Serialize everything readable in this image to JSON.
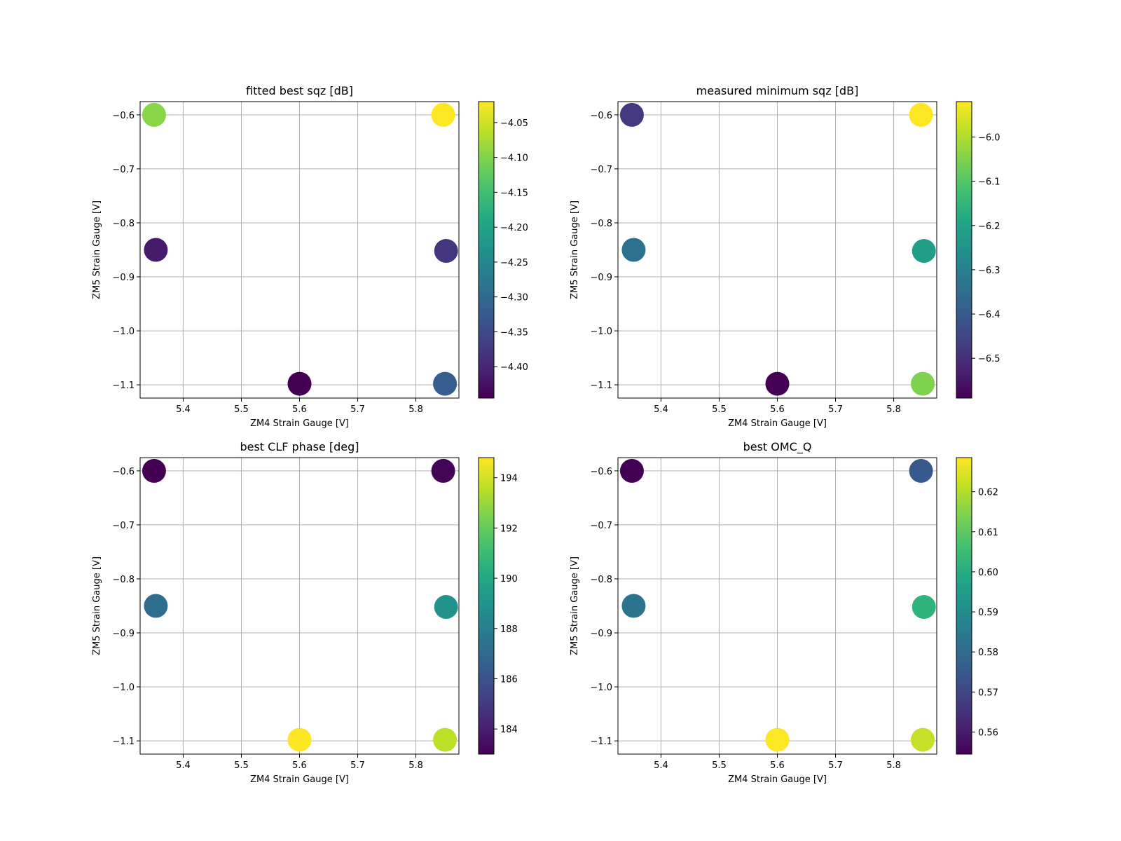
{
  "chart_data": [
    {
      "type": "scatter",
      "title": "fitted best sqz [dB]",
      "xlabel": "ZM4 Strain Gauge [V]",
      "ylabel": "ZM5 Strain Gauge [V]",
      "xlim": [
        5.326,
        5.874
      ],
      "ylim": [
        -1.1245,
        -0.5755
      ],
      "xticks": [
        "5.4",
        "5.5",
        "5.6",
        "5.7",
        "5.8"
      ],
      "yticks": [
        "−0.6",
        "−0.7",
        "−0.8",
        "−0.9",
        "−1.0",
        "−1.1"
      ],
      "grid": true,
      "colormap": "viridis",
      "colorbar": {
        "vmin": -4.445,
        "vmax": -4.02,
        "ticks": [
          "−4.05",
          "−4.10",
          "−4.15",
          "−4.20",
          "−4.25",
          "−4.30",
          "−4.35",
          "−4.40"
        ]
      },
      "points": [
        {
          "x": 5.35,
          "y": -0.6,
          "c": -4.095
        },
        {
          "x": 5.847,
          "y": -0.6,
          "c": -4.02
        },
        {
          "x": 5.353,
          "y": -0.85,
          "c": -4.415
        },
        {
          "x": 5.852,
          "y": -0.852,
          "c": -4.38
        },
        {
          "x": 5.6,
          "y": -1.098,
          "c": -4.445
        },
        {
          "x": 5.85,
          "y": -1.098,
          "c": -4.32
        }
      ]
    },
    {
      "type": "scatter",
      "title": "measured minimum sqz [dB]",
      "xlabel": "ZM4 Strain Gauge [V]",
      "ylabel": "ZM5 Strain Gauge [V]",
      "xlim": [
        5.326,
        5.874
      ],
      "ylim": [
        -1.1245,
        -0.5755
      ],
      "xticks": [
        "5.4",
        "5.5",
        "5.6",
        "5.7",
        "5.8"
      ],
      "yticks": [
        "−0.6",
        "−0.7",
        "−0.8",
        "−0.9",
        "−1.0",
        "−1.1"
      ],
      "grid": true,
      "colormap": "viridis",
      "colorbar": {
        "vmin": -6.59,
        "vmax": -5.92,
        "ticks": [
          "−6.0",
          "−6.1",
          "−6.2",
          "−6.3",
          "−6.4",
          "−6.5"
        ]
      },
      "points": [
        {
          "x": 5.35,
          "y": -0.6,
          "c": -6.48
        },
        {
          "x": 5.847,
          "y": -0.6,
          "c": -5.92
        },
        {
          "x": 5.353,
          "y": -0.85,
          "c": -6.34
        },
        {
          "x": 5.852,
          "y": -0.852,
          "c": -6.22
        },
        {
          "x": 5.6,
          "y": -1.098,
          "c": -6.59
        },
        {
          "x": 5.85,
          "y": -1.098,
          "c": -6.05
        }
      ]
    },
    {
      "type": "scatter",
      "title": "best CLF phase [deg]",
      "xlabel": "ZM4 Strain Gauge [V]",
      "ylabel": "ZM5 Strain Gauge [V]",
      "xlim": [
        5.326,
        5.874
      ],
      "ylim": [
        -1.1245,
        -0.5755
      ],
      "xticks": [
        "5.4",
        "5.5",
        "5.6",
        "5.7",
        "5.8"
      ],
      "yticks": [
        "−0.6",
        "−0.7",
        "−0.8",
        "−0.9",
        "−1.0",
        "−1.1"
      ],
      "grid": true,
      "colormap": "viridis",
      "colorbar": {
        "vmin": 183.0,
        "vmax": 194.8,
        "ticks": [
          "194",
          "192",
          "190",
          "188",
          "186",
          "184"
        ]
      },
      "points": [
        {
          "x": 5.35,
          "y": -0.6,
          "c": 183.0
        },
        {
          "x": 5.847,
          "y": -0.6,
          "c": 183.1
        },
        {
          "x": 5.353,
          "y": -0.85,
          "c": 187.2
        },
        {
          "x": 5.852,
          "y": -0.852,
          "c": 189.0
        },
        {
          "x": 5.6,
          "y": -1.098,
          "c": 194.8
        },
        {
          "x": 5.85,
          "y": -1.098,
          "c": 193.6
        }
      ]
    },
    {
      "type": "scatter",
      "title": "best OMC_Q",
      "xlabel": "ZM4 Strain Gauge [V]",
      "ylabel": "ZM5 Strain Gauge [V]",
      "xlim": [
        5.326,
        5.874
      ],
      "ylim": [
        -1.1245,
        -0.5755
      ],
      "xticks": [
        "5.4",
        "5.5",
        "5.6",
        "5.7",
        "5.8"
      ],
      "yticks": [
        "−0.6",
        "−0.7",
        "−0.8",
        "−0.9",
        "−1.0",
        "−1.1"
      ],
      "grid": true,
      "colormap": "viridis",
      "colorbar": {
        "vmin": 0.5545,
        "vmax": 0.6285,
        "ticks": [
          "0.62",
          "0.61",
          "0.60",
          "0.59",
          "0.58",
          "0.57",
          "0.56"
        ]
      },
      "points": [
        {
          "x": 5.35,
          "y": -0.6,
          "c": 0.5545
        },
        {
          "x": 5.847,
          "y": -0.6,
          "c": 0.575
        },
        {
          "x": 5.353,
          "y": -0.85,
          "c": 0.583
        },
        {
          "x": 5.852,
          "y": -0.852,
          "c": 0.602
        },
        {
          "x": 5.6,
          "y": -1.098,
          "c": 0.6285
        },
        {
          "x": 5.85,
          "y": -1.098,
          "c": 0.622
        }
      ]
    }
  ]
}
